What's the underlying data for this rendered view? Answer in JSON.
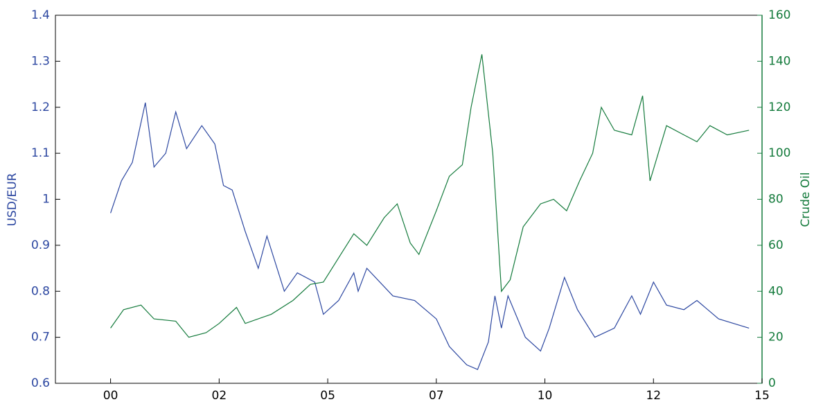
{
  "chart_data": {
    "type": "line",
    "xlim": [
      1998.73,
      2015
    ],
    "xticks": [
      {
        "value": 2000,
        "label": "00"
      },
      {
        "value": 2002.5,
        "label": "02"
      },
      {
        "value": 2005,
        "label": "05"
      },
      {
        "value": 2007.5,
        "label": "07"
      },
      {
        "value": 2010,
        "label": "10"
      },
      {
        "value": 2012.5,
        "label": "12"
      },
      {
        "value": 2015,
        "label": "15"
      }
    ],
    "ylim": [
      0.6,
      1.4
    ],
    "yticks": [
      0.6,
      0.7,
      0.8,
      0.9,
      1,
      1.1,
      1.2,
      1.3,
      1.4
    ],
    "y2lim": [
      0,
      160
    ],
    "y2ticks": [
      0,
      20,
      40,
      60,
      80,
      100,
      120,
      140,
      160
    ],
    "ylabel": "USD/EUR",
    "y2label": "Crude Oil",
    "series": [
      {
        "name": "USD/EUR",
        "color": "#2b46a0",
        "axis": "y",
        "x": [
          2000.0,
          2000.25,
          2000.5,
          2000.8,
          2001.0,
          2001.27,
          2001.5,
          2001.75,
          2002.1,
          2002.4,
          2002.6,
          2002.8,
          2003.1,
          2003.4,
          2003.6,
          2004.0,
          2004.3,
          2004.7,
          2004.9,
          2005.25,
          2005.6,
          2005.7,
          2005.9,
          2006.5,
          2007.0,
          2007.5,
          2007.8,
          2008.2,
          2008.45,
          2008.7,
          2008.85,
          2009.0,
          2009.15,
          2009.55,
          2009.9,
          2010.1,
          2010.45,
          2010.75,
          2011.15,
          2011.6,
          2012.0,
          2012.2,
          2012.5,
          2012.8,
          2013.2,
          2013.5,
          2014.0,
          2014.7
        ],
        "values": [
          0.97,
          1.04,
          1.08,
          1.21,
          1.07,
          1.1,
          1.19,
          1.11,
          1.16,
          1.12,
          1.03,
          1.02,
          0.93,
          0.85,
          0.92,
          0.8,
          0.84,
          0.82,
          0.75,
          0.78,
          0.84,
          0.8,
          0.85,
          0.79,
          0.78,
          0.74,
          0.68,
          0.64,
          0.63,
          0.69,
          0.79,
          0.72,
          0.79,
          0.7,
          0.67,
          0.72,
          0.83,
          0.76,
          0.7,
          0.72,
          0.79,
          0.75,
          0.82,
          0.77,
          0.76,
          0.78,
          0.74,
          0.72
        ]
      },
      {
        "name": "Crude Oil",
        "color": "#137a3b",
        "axis": "y2",
        "x": [
          2000.0,
          2000.3,
          2000.7,
          2001.0,
          2001.5,
          2001.8,
          2002.2,
          2002.5,
          2002.9,
          2003.1,
          2003.7,
          2004.2,
          2004.6,
          2004.9,
          2005.3,
          2005.6,
          2005.9,
          2006.3,
          2006.6,
          2006.9,
          2007.1,
          2007.5,
          2007.8,
          2008.1,
          2008.3,
          2008.55,
          2008.8,
          2009.0,
          2009.2,
          2009.5,
          2009.9,
          2010.2,
          2010.5,
          2010.8,
          2011.1,
          2011.3,
          2011.6,
          2012.0,
          2012.25,
          2012.42,
          2012.8,
          2013.2,
          2013.5,
          2013.8,
          2014.2,
          2014.7
        ],
        "values": [
          24,
          32,
          34,
          28,
          27,
          20,
          22,
          26,
          33,
          26,
          30,
          36,
          43,
          44,
          56,
          65,
          60,
          72,
          78,
          61,
          56,
          75,
          90,
          95,
          120,
          143,
          100,
          40,
          45,
          68,
          78,
          80,
          75,
          88,
          100,
          120,
          110,
          108,
          125,
          88,
          112,
          108,
          105,
          112,
          108,
          110
        ]
      }
    ]
  }
}
